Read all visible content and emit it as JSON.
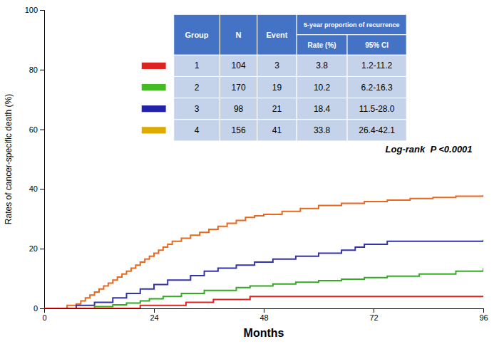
{
  "chart_data": {
    "type": "step",
    "xlabel": "Months",
    "ylabel": "Rates of cancer-specific death (%)",
    "xlim": [
      0,
      96
    ],
    "ylim": [
      0,
      100
    ],
    "xticks": [
      0,
      24,
      48,
      72,
      96
    ],
    "yticks": [
      0,
      20,
      40,
      60,
      80,
      100
    ],
    "grid": false,
    "annotation": "Log-rank  P <0.0001",
    "series": [
      {
        "color": "#e8681e",
        "x": [
          0,
          4,
          5,
          7,
          8,
          9,
          10,
          11,
          12,
          13,
          14,
          15,
          16,
          17,
          18,
          19,
          20,
          21,
          22,
          23,
          24,
          25,
          26,
          27,
          28,
          30,
          32,
          34,
          36,
          38,
          40,
          42,
          44,
          46,
          48,
          52,
          56,
          60,
          65,
          70,
          75,
          80,
          85,
          90,
          96
        ],
        "values": [
          0,
          0,
          1.0,
          1.5,
          2.5,
          3.5,
          4.5,
          5.5,
          6.5,
          7.5,
          8.5,
          9.5,
          10.5,
          11.5,
          12.5,
          13.5,
          14.5,
          15.5,
          16.5,
          17.5,
          18.5,
          19.5,
          20.5,
          21.5,
          22.5,
          23.5,
          24.5,
          25.5,
          26.5,
          27.5,
          28.5,
          29.5,
          30.5,
          31.0,
          31.5,
          32.5,
          33.5,
          34.5,
          35.2,
          35.8,
          36.3,
          36.8,
          37.2,
          37.6,
          38.0
        ]
      },
      {
        "color": "#3333aa",
        "x": [
          0,
          6,
          7,
          10,
          11,
          14,
          15,
          17,
          18,
          20,
          21,
          23,
          24,
          26,
          27,
          30,
          32,
          35,
          38,
          42,
          46,
          50,
          55,
          60,
          65,
          68,
          70,
          75,
          96
        ],
        "values": [
          0,
          0,
          1.0,
          1.0,
          2.0,
          2.0,
          3.5,
          3.5,
          5.0,
          5.0,
          6.5,
          6.5,
          8.0,
          8.0,
          9.5,
          9.5,
          11.0,
          12.5,
          13.5,
          14.5,
          15.5,
          16.5,
          17.5,
          18.5,
          19.5,
          20.5,
          21.5,
          22.5,
          23.0
        ]
      },
      {
        "color": "#33aa22",
        "x": [
          0,
          10,
          11,
          14,
          15,
          17,
          18,
          20,
          21,
          22,
          23,
          25,
          26,
          28,
          30,
          35,
          42,
          45,
          50,
          55,
          60,
          65,
          70,
          75,
          82,
          90,
          96
        ],
        "values": [
          0,
          0,
          0.6,
          0.6,
          1.2,
          1.2,
          1.8,
          1.8,
          2.5,
          2.5,
          3.2,
          3.2,
          4.0,
          4.0,
          5.0,
          6.0,
          7.0,
          7.5,
          8.2,
          8.8,
          9.3,
          9.8,
          10.3,
          10.8,
          11.5,
          12.5,
          13.5
        ]
      },
      {
        "color": "#dd2222",
        "x": [
          0,
          20,
          21,
          30,
          31,
          36,
          37,
          44,
          45,
          96
        ],
        "values": [
          0,
          0,
          1.0,
          1.0,
          2.0,
          2.0,
          3.0,
          3.0,
          4.0,
          4.0
        ]
      }
    ],
    "table": {
      "headers": [
        "Group",
        "N",
        "Event"
      ],
      "span_header": "5-year proportion of recurrence",
      "sub_headers": [
        "Rate (%)",
        "95% CI"
      ],
      "groups": [
        "1",
        "2",
        "3",
        "4"
      ],
      "N": [
        104,
        170,
        98,
        156
      ],
      "Event": [
        3,
        19,
        21,
        41
      ],
      "Rate": [
        3.8,
        10.2,
        18.4,
        33.8
      ],
      "CI": [
        "1.2-11.2",
        "6.2-16.3",
        "11.5-28.0",
        "26.4-42.1"
      ],
      "colors": [
        "#dd2222",
        "#44bb22",
        "#2222aa",
        "#ddaa00"
      ],
      "header_color": "#4472c4",
      "row_color": "#c5d3ea",
      "header_text_color": "#ffffff"
    }
  }
}
